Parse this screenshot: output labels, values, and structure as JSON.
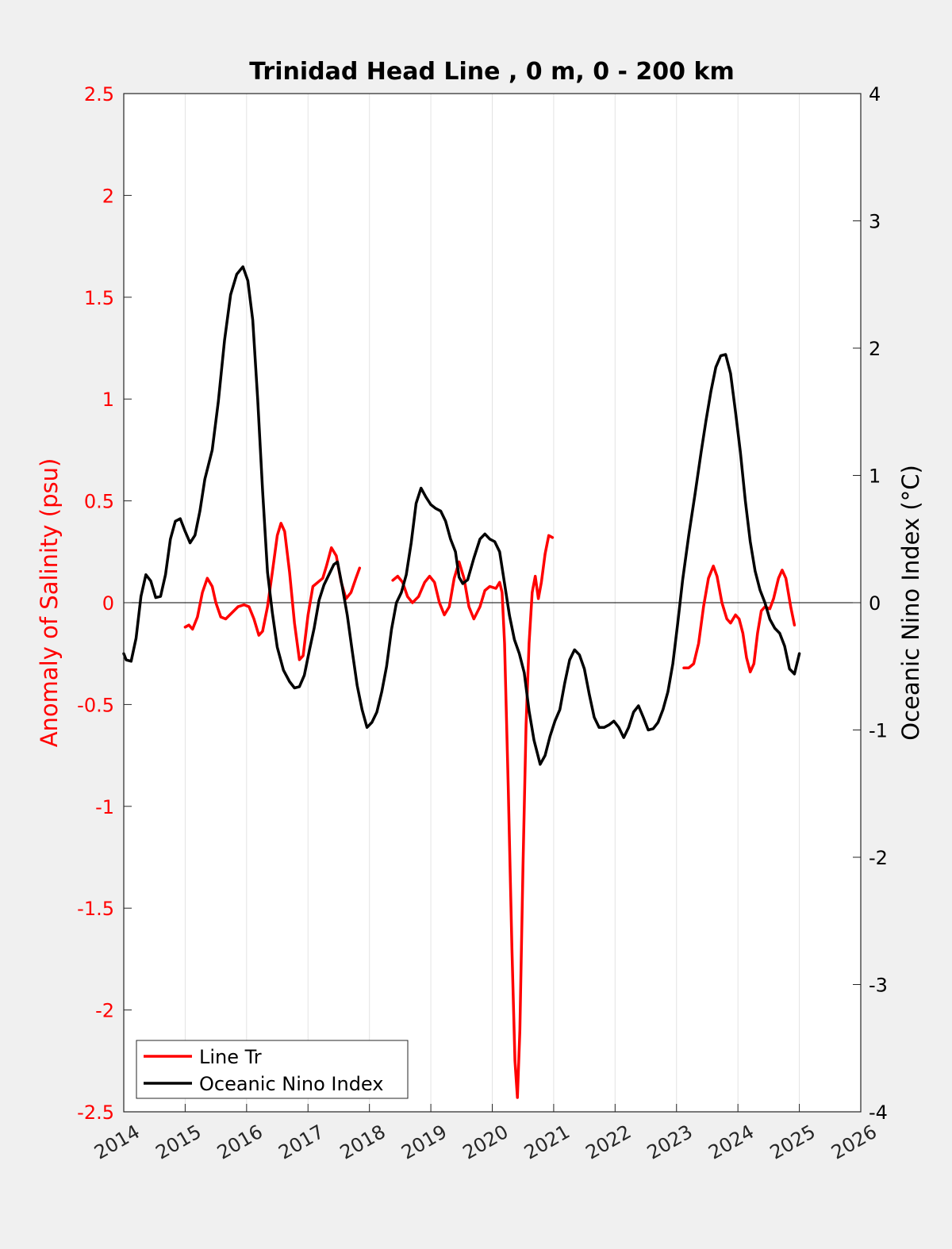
{
  "chart_data": {
    "type": "line",
    "title": "Trinidad Head Line , 0 m, 0 - 200 km",
    "ylabel_left": "Anomaly of Salinity (psu)",
    "ylabel_right": "Oceanic Nino Index (°C)",
    "xlim": [
      2014,
      2026
    ],
    "ylim_left": [
      -2.5,
      2.5
    ],
    "ylim_right": [
      -4,
      4
    ],
    "x_ticks": [
      "2014",
      "2015",
      "2016",
      "2017",
      "2018",
      "2019",
      "2020",
      "2021",
      "2022",
      "2023",
      "2024",
      "2025",
      "2026"
    ],
    "y_ticks_left": [
      "2.5",
      "2",
      "1.5",
      "1",
      "0.5",
      "0",
      "-0.5",
      "-1",
      "-1.5",
      "-2",
      "-2.5"
    ],
    "y_ticks_right": [
      "4",
      "3",
      "2",
      "1",
      "0",
      "-1",
      "-2",
      "-3",
      "-4"
    ],
    "grid": "vertical",
    "legend_position": "bottom-left",
    "colors": {
      "salinity": "#ff0000",
      "oni": "#000000",
      "left_axis": "#ff0000",
      "right_axis": "#000000"
    },
    "series": [
      {
        "name": "Line Tr",
        "axis": "left",
        "segments": [
          [
            [
              2015.0,
              -0.12
            ],
            [
              2015.06,
              -0.11
            ],
            [
              2015.12,
              -0.13
            ],
            [
              2015.2,
              -0.07
            ],
            [
              2015.28,
              0.05
            ],
            [
              2015.36,
              0.12
            ],
            [
              2015.44,
              0.08
            ],
            [
              2015.5,
              0.0
            ],
            [
              2015.58,
              -0.07
            ],
            [
              2015.66,
              -0.08
            ],
            [
              2015.76,
              -0.05
            ],
            [
              2015.86,
              -0.02
            ],
            [
              2015.96,
              -0.01
            ],
            [
              2016.04,
              -0.02
            ],
            [
              2016.12,
              -0.08
            ],
            [
              2016.2,
              -0.16
            ],
            [
              2016.26,
              -0.14
            ],
            [
              2016.34,
              -0.02
            ],
            [
              2016.42,
              0.15
            ],
            [
              2016.5,
              0.33
            ],
            [
              2016.56,
              0.39
            ],
            [
              2016.62,
              0.35
            ],
            [
              2016.7,
              0.15
            ],
            [
              2016.78,
              -0.1
            ],
            [
              2016.86,
              -0.28
            ],
            [
              2016.92,
              -0.26
            ],
            [
              2017.0,
              -0.06
            ],
            [
              2017.08,
              0.08
            ],
            [
              2017.16,
              0.1
            ],
            [
              2017.24,
              0.12
            ],
            [
              2017.3,
              0.18
            ],
            [
              2017.38,
              0.27
            ],
            [
              2017.46,
              0.23
            ],
            [
              2017.54,
              0.1
            ],
            [
              2017.62,
              0.02
            ],
            [
              2017.7,
              0.05
            ],
            [
              2017.78,
              0.12
            ],
            [
              2017.84,
              0.17
            ]
          ],
          [
            [
              2018.38,
              0.11
            ],
            [
              2018.46,
              0.13
            ],
            [
              2018.54,
              0.1
            ],
            [
              2018.62,
              0.03
            ],
            [
              2018.7,
              0.0
            ],
            [
              2018.8,
              0.03
            ],
            [
              2018.9,
              0.1
            ],
            [
              2018.98,
              0.13
            ],
            [
              2019.06,
              0.1
            ],
            [
              2019.14,
              0.0
            ],
            [
              2019.22,
              -0.06
            ],
            [
              2019.3,
              -0.02
            ],
            [
              2019.38,
              0.12
            ],
            [
              2019.46,
              0.2
            ],
            [
              2019.54,
              0.12
            ],
            [
              2019.62,
              -0.02
            ],
            [
              2019.7,
              -0.08
            ],
            [
              2019.8,
              -0.02
            ],
            [
              2019.88,
              0.06
            ],
            [
              2019.96,
              0.08
            ],
            [
              2020.06,
              0.07
            ],
            [
              2020.12,
              0.1
            ],
            [
              2020.16,
              0.05
            ],
            [
              2020.2,
              -0.2
            ],
            [
              2020.26,
              -0.9
            ],
            [
              2020.32,
              -1.7
            ],
            [
              2020.37,
              -2.25
            ],
            [
              2020.41,
              -2.43
            ],
            [
              2020.45,
              -2.1
            ],
            [
              2020.5,
              -1.3
            ],
            [
              2020.55,
              -0.6
            ],
            [
              2020.6,
              -0.2
            ],
            [
              2020.65,
              0.05
            ],
            [
              2020.7,
              0.13
            ],
            [
              2020.75,
              0.02
            ],
            [
              2020.8,
              0.1
            ],
            [
              2020.86,
              0.24
            ],
            [
              2020.92,
              0.33
            ],
            [
              2020.98,
              0.32
            ]
          ],
          [
            [
              2023.12,
              -0.32
            ],
            [
              2023.2,
              -0.32
            ],
            [
              2023.28,
              -0.3
            ],
            [
              2023.36,
              -0.2
            ],
            [
              2023.44,
              -0.02
            ],
            [
              2023.52,
              0.12
            ],
            [
              2023.6,
              0.18
            ],
            [
              2023.66,
              0.13
            ],
            [
              2023.74,
              0.0
            ],
            [
              2023.82,
              -0.08
            ],
            [
              2023.88,
              -0.1
            ],
            [
              2023.96,
              -0.06
            ],
            [
              2024.02,
              -0.08
            ],
            [
              2024.08,
              -0.15
            ],
            [
              2024.14,
              -0.27
            ],
            [
              2024.2,
              -0.34
            ],
            [
              2024.26,
              -0.3
            ],
            [
              2024.32,
              -0.15
            ],
            [
              2024.38,
              -0.04
            ],
            [
              2024.44,
              -0.02
            ],
            [
              2024.52,
              -0.03
            ],
            [
              2024.58,
              0.02
            ],
            [
              2024.66,
              0.12
            ],
            [
              2024.72,
              0.16
            ],
            [
              2024.78,
              0.12
            ],
            [
              2024.86,
              -0.02
            ],
            [
              2024.92,
              -0.11
            ]
          ]
        ]
      },
      {
        "name": "Oceanic Nino Index",
        "axis": "right",
        "segments": [
          [
            [
              2014.0,
              -0.4
            ],
            [
              2014.04,
              -0.45
            ],
            [
              2014.12,
              -0.46
            ],
            [
              2014.2,
              -0.28
            ],
            [
              2014.28,
              0.05
            ],
            [
              2014.36,
              0.22
            ],
            [
              2014.44,
              0.17
            ],
            [
              2014.52,
              0.04
            ],
            [
              2014.6,
              0.05
            ],
            [
              2014.68,
              0.22
            ],
            [
              2014.76,
              0.5
            ],
            [
              2014.84,
              0.64
            ],
            [
              2014.92,
              0.66
            ],
            [
              2015.0,
              0.56
            ],
            [
              2015.08,
              0.47
            ],
            [
              2015.16,
              0.53
            ],
            [
              2015.24,
              0.72
            ],
            [
              2015.32,
              0.97
            ],
            [
              2015.44,
              1.2
            ],
            [
              2015.54,
              1.58
            ],
            [
              2015.64,
              2.06
            ],
            [
              2015.74,
              2.42
            ],
            [
              2015.84,
              2.58
            ],
            [
              2015.94,
              2.64
            ],
            [
              2016.02,
              2.53
            ],
            [
              2016.1,
              2.22
            ],
            [
              2016.18,
              1.6
            ],
            [
              2016.26,
              0.88
            ],
            [
              2016.34,
              0.24
            ],
            [
              2016.42,
              -0.08
            ],
            [
              2016.5,
              -0.35
            ],
            [
              2016.6,
              -0.53
            ],
            [
              2016.7,
              -0.62
            ],
            [
              2016.78,
              -0.67
            ],
            [
              2016.86,
              -0.66
            ],
            [
              2016.94,
              -0.57
            ],
            [
              2017.02,
              -0.38
            ],
            [
              2017.1,
              -0.2
            ],
            [
              2017.18,
              0.02
            ],
            [
              2017.26,
              0.14
            ],
            [
              2017.34,
              0.22
            ],
            [
              2017.42,
              0.3
            ],
            [
              2017.48,
              0.32
            ],
            [
              2017.56,
              0.12
            ],
            [
              2017.64,
              -0.1
            ],
            [
              2017.72,
              -0.38
            ],
            [
              2017.8,
              -0.65
            ],
            [
              2017.88,
              -0.84
            ],
            [
              2017.96,
              -0.98
            ],
            [
              2018.04,
              -0.94
            ],
            [
              2018.12,
              -0.86
            ],
            [
              2018.2,
              -0.7
            ],
            [
              2018.28,
              -0.5
            ],
            [
              2018.36,
              -0.21
            ],
            [
              2018.44,
              0.0
            ],
            [
              2018.52,
              0.08
            ],
            [
              2018.6,
              0.22
            ],
            [
              2018.68,
              0.47
            ],
            [
              2018.76,
              0.78
            ],
            [
              2018.84,
              0.9
            ],
            [
              2018.92,
              0.83
            ],
            [
              2019.0,
              0.77
            ],
            [
              2019.08,
              0.74
            ],
            [
              2019.16,
              0.72
            ],
            [
              2019.24,
              0.64
            ],
            [
              2019.32,
              0.5
            ],
            [
              2019.4,
              0.4
            ],
            [
              2019.46,
              0.2
            ],
            [
              2019.52,
              0.15
            ],
            [
              2019.6,
              0.18
            ],
            [
              2019.7,
              0.35
            ],
            [
              2019.8,
              0.5
            ],
            [
              2019.88,
              0.54
            ],
            [
              2019.96,
              0.5
            ],
            [
              2020.04,
              0.48
            ],
            [
              2020.12,
              0.4
            ],
            [
              2020.2,
              0.15
            ],
            [
              2020.28,
              -0.1
            ],
            [
              2020.36,
              -0.29
            ],
            [
              2020.44,
              -0.4
            ],
            [
              2020.52,
              -0.55
            ],
            [
              2020.6,
              -0.85
            ],
            [
              2020.68,
              -1.08
            ],
            [
              2020.78,
              -1.27
            ],
            [
              2020.86,
              -1.2
            ],
            [
              2020.94,
              -1.05
            ],
            [
              2021.02,
              -0.93
            ],
            [
              2021.1,
              -0.84
            ],
            [
              2021.18,
              -0.63
            ],
            [
              2021.26,
              -0.45
            ],
            [
              2021.34,
              -0.37
            ],
            [
              2021.42,
              -0.41
            ],
            [
              2021.5,
              -0.52
            ],
            [
              2021.58,
              -0.72
            ],
            [
              2021.66,
              -0.9
            ],
            [
              2021.74,
              -0.98
            ],
            [
              2021.82,
              -0.98
            ],
            [
              2021.9,
              -0.96
            ],
            [
              2021.98,
              -0.93
            ],
            [
              2022.06,
              -0.98
            ],
            [
              2022.14,
              -1.06
            ],
            [
              2022.22,
              -0.98
            ],
            [
              2022.3,
              -0.86
            ],
            [
              2022.38,
              -0.81
            ],
            [
              2022.46,
              -0.9
            ],
            [
              2022.54,
              -1.0
            ],
            [
              2022.62,
              -0.99
            ],
            [
              2022.7,
              -0.94
            ],
            [
              2022.78,
              -0.84
            ],
            [
              2022.86,
              -0.7
            ],
            [
              2022.94,
              -0.48
            ],
            [
              2023.02,
              -0.16
            ],
            [
              2023.1,
              0.18
            ],
            [
              2023.2,
              0.53
            ],
            [
              2023.3,
              0.85
            ],
            [
              2023.4,
              1.18
            ],
            [
              2023.48,
              1.43
            ],
            [
              2023.56,
              1.66
            ],
            [
              2023.64,
              1.85
            ],
            [
              2023.72,
              1.94
            ],
            [
              2023.8,
              1.95
            ],
            [
              2023.88,
              1.8
            ],
            [
              2023.96,
              1.5
            ],
            [
              2024.04,
              1.18
            ],
            [
              2024.12,
              0.8
            ],
            [
              2024.2,
              0.48
            ],
            [
              2024.28,
              0.25
            ],
            [
              2024.36,
              0.1
            ],
            [
              2024.44,
              0.0
            ],
            [
              2024.52,
              -0.13
            ],
            [
              2024.6,
              -0.2
            ],
            [
              2024.68,
              -0.24
            ],
            [
              2024.76,
              -0.34
            ],
            [
              2024.84,
              -0.52
            ],
            [
              2024.92,
              -0.56
            ],
            [
              2025.0,
              -0.4
            ]
          ]
        ]
      }
    ]
  },
  "legend": {
    "items": [
      {
        "label": "Line Tr",
        "color": "#ff0000"
      },
      {
        "label": "Oceanic Nino Index",
        "color": "#000000"
      }
    ]
  }
}
